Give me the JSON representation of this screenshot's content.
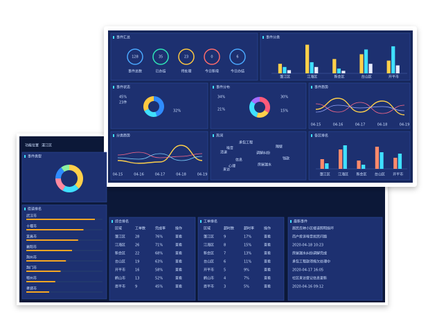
{
  "front": {
    "summary": {
      "title": "事件汇总",
      "items": [
        {
          "label": "事件总数",
          "value": 128,
          "color": "#4aa8ff"
        },
        {
          "label": "已办结",
          "value": 35,
          "color": "#2ee6b8"
        },
        {
          "label": "待处理",
          "value": 23,
          "color": "#ffc940"
        },
        {
          "label": "今日新增",
          "value": 0,
          "color": "#ff6b6b"
        },
        {
          "label": "今日办结",
          "value": 6,
          "color": "#4aa8ff"
        }
      ]
    },
    "category": {
      "title": "事件分类",
      "type": "bar",
      "categories": [
        "蓬江区",
        "江海区",
        "新会区",
        "台山区",
        "开平市"
      ],
      "ylim": [
        0,
        100
      ],
      "series": [
        {
          "color": "#ffd04a",
          "values": [
            30,
            90,
            45,
            60,
            40
          ]
        },
        {
          "color": "#3fe0ff",
          "values": [
            20,
            35,
            15,
            75,
            85
          ]
        },
        {
          "color": "#e8ecff",
          "values": [
            10,
            20,
            8,
            30,
            25
          ]
        }
      ]
    },
    "status": {
      "title": "事件状态",
      "type": "pie",
      "values": [
        45,
        23,
        32
      ],
      "value_labels": [
        "45%",
        "23件",
        "32%"
      ],
      "colors": [
        "#2f8cff",
        "#3fe0ff",
        "#ffc940"
      ]
    },
    "distribution": {
      "title": "事件分布",
      "type": "pie",
      "values": [
        34,
        21,
        30,
        15
      ],
      "value_labels": [
        "34%",
        "21%",
        "30%",
        "15%"
      ],
      "colors": [
        "#ff5a7a",
        "#ffd04a",
        "#3fe0ff",
        "#a66bff"
      ]
    },
    "trend": {
      "title": "事件趋势",
      "type": "line",
      "categories": [
        "04-15",
        "04-16",
        "04-17",
        "04-18",
        "04-19"
      ],
      "ylim": [
        0,
        100
      ],
      "series": [
        {
          "color": "#ffd04a",
          "values": [
            40,
            80,
            30,
            70,
            20
          ]
        },
        {
          "color": "#ff6b8a",
          "values": [
            60,
            30,
            65,
            25,
            55
          ]
        },
        {
          "color": "#9aa8ff",
          "values": [
            30,
            55,
            45,
            50,
            35
          ]
        }
      ]
    },
    "class_trend": {
      "title": "分类趋势",
      "type": "line",
      "categories": [
        "04-15",
        "04-16",
        "04-17",
        "04-18",
        "04-19"
      ],
      "ylim": [
        0,
        100
      ],
      "series": [
        {
          "color": "#ffd04a",
          "values": [
            30,
            20,
            25,
            85,
            30
          ]
        },
        {
          "color": "#ff6b8a",
          "values": [
            50,
            60,
            40,
            45,
            55
          ]
        },
        {
          "color": "#7fd4ff",
          "values": [
            40,
            35,
            55,
            30,
            45
          ]
        }
      ]
    },
    "hotwords": {
      "title": "热词",
      "words": [
        "承包工程",
        "调解纠纷",
        "房屋漏水",
        "噪音",
        "钱款",
        "清退",
        "信息",
        "来访",
        "心理",
        "隔壁"
      ]
    },
    "ranking": {
      "title": "各区排名",
      "type": "bar",
      "categories": [
        "蓬江区",
        "江海区",
        "新会区",
        "台山区",
        "开平市"
      ],
      "ylim": [
        0,
        100
      ],
      "series": [
        {
          "color": "#ff8a6b",
          "values": [
            35,
            70,
            30,
            80,
            40
          ]
        },
        {
          "color": "#3fe0ff",
          "values": [
            20,
            85,
            15,
            60,
            55
          ]
        }
      ]
    }
  },
  "back": {
    "filter_label": "功能位置",
    "filter_value": "湛江区",
    "donut": {
      "title": "事件类型",
      "values": [
        38,
        20,
        17,
        15,
        10
      ],
      "colors": [
        "#ffd04a",
        "#3fe0ff",
        "#ff8aa0",
        "#2f8cff",
        "#8cf0a0"
      ]
    },
    "progress": {
      "title": "街道排名",
      "items": [
        {
          "label": "武汉市",
          "value": 90
        },
        {
          "label": "十堰市",
          "value": 75
        },
        {
          "label": "宜昌市",
          "value": 68
        },
        {
          "label": "襄阳市",
          "value": 60
        },
        {
          "label": "荆州市",
          "value": 52
        },
        {
          "label": "荆门市",
          "value": 45
        },
        {
          "label": "鄂州市",
          "value": 38
        },
        {
          "label": "孝感市",
          "value": 30
        }
      ]
    },
    "tables": [
      {
        "title": "综合排名",
        "headers": [
          "区域",
          "工单数",
          "完成率",
          "操作"
        ],
        "rows": [
          [
            "蓬江区",
            "28",
            "76%",
            "查看"
          ],
          [
            "江海区",
            "26",
            "71%",
            "查看"
          ],
          [
            "新会区",
            "22",
            "68%",
            "查看"
          ],
          [
            "台山区",
            "19",
            "63%",
            "查看"
          ],
          [
            "开平市",
            "16",
            "58%",
            "查看"
          ],
          [
            "鹤山市",
            "13",
            "52%",
            "查看"
          ],
          [
            "恩平市",
            "9",
            "45%",
            "查看"
          ]
        ]
      },
      {
        "title": "工单排名",
        "headers": [
          "区域",
          "超时数",
          "超时率",
          "操作"
        ],
        "rows": [
          [
            "蓬江区",
            "9",
            "17%",
            "查看"
          ],
          [
            "江海区",
            "8",
            "15%",
            "查看"
          ],
          [
            "新会区",
            "7",
            "13%",
            "查看"
          ],
          [
            "台山区",
            "6",
            "11%",
            "查看"
          ],
          [
            "开平市",
            "5",
            "9%",
            "查看"
          ],
          [
            "鹤山市",
            "4",
            "7%",
            "查看"
          ],
          [
            "恩平市",
            "3",
            "5%",
            "查看"
          ]
        ]
      }
    ],
    "news": {
      "title": "最新事件",
      "items": [
        "居民反映小区楼道照明损坏",
        "商户投诉噪音扰民问题",
        "2020-04-18 10:23",
        "房屋漏水纠纷调解完成",
        "承包工程款项拖欠处理中",
        "2020-04-17 16:05",
        "社区来访登记信息更新",
        "2020-04-16 09:12"
      ]
    }
  }
}
